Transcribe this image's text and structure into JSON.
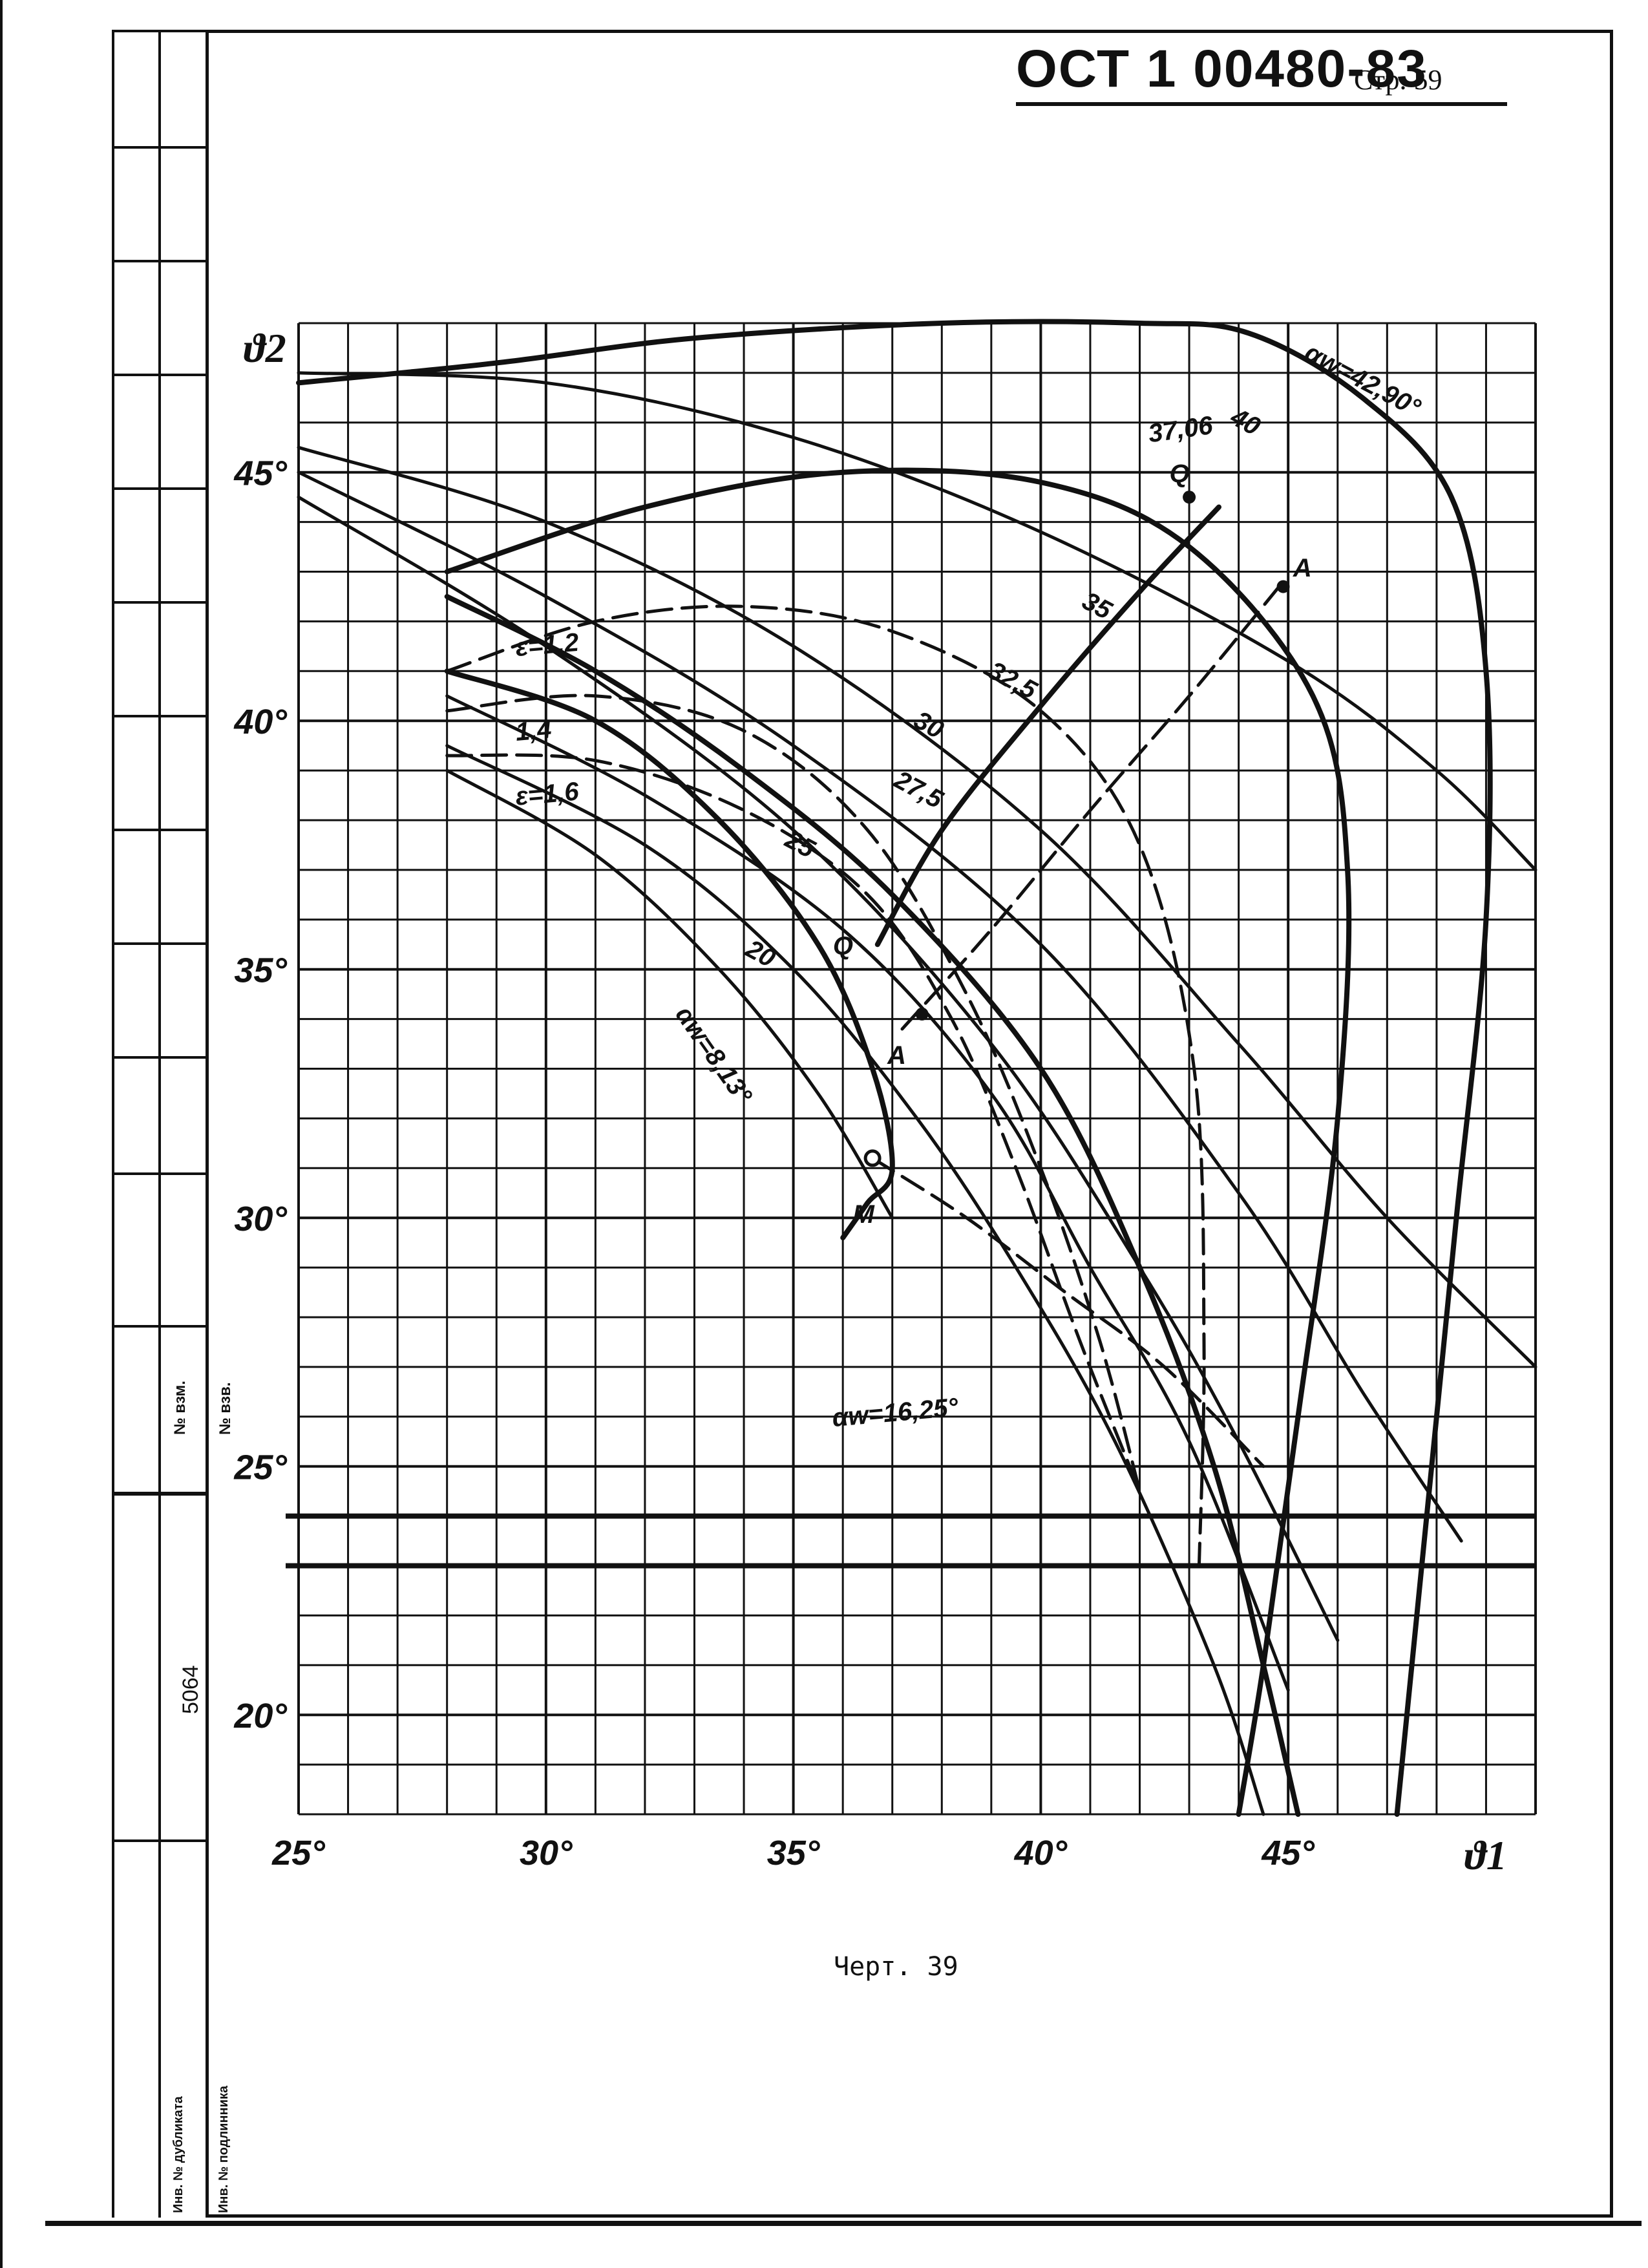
{
  "header": {
    "doc_number": "ОСТ 1 00480-83",
    "page": "Стр. 59"
  },
  "stamp": {
    "box1": "№ взм.",
    "box2": "№ взв.",
    "box3": "5064",
    "box4": "Инв. № дубликата",
    "box5": "Инв. № подлинника"
  },
  "caption": "Черт. 39",
  "chart_data": {
    "type": "line",
    "xlabel": "ϑ1",
    "ylabel": "ϑ2",
    "xlim": [
      25,
      50
    ],
    "ylim": [
      18,
      48
    ],
    "x_ticks": [
      "25°",
      "30°",
      "35°",
      "40°",
      "45°"
    ],
    "y_ticks": [
      "20°",
      "25°",
      "30°",
      "35°",
      "40°",
      "45°"
    ],
    "grid": true,
    "annotations": [
      "αw=42,90°",
      "40",
      "37,06",
      "35",
      "32,5",
      "30",
      "27,5",
      "25",
      "20",
      "αw=8,13°",
      "αw=16,25°",
      "ε=1,2",
      "1,4",
      "ε=1,6",
      "Q",
      "Q",
      "A",
      "A",
      "M"
    ],
    "series": [
      {
        "name": "αw=42,90°",
        "style": "solid",
        "points": [
          [
            25,
            46.8
          ],
          [
            29,
            47.2
          ],
          [
            33,
            47.7
          ],
          [
            38,
            48
          ],
          [
            42,
            48
          ],
          [
            44.2,
            47.8
          ],
          [
            46.5,
            46.5
          ],
          [
            48.3,
            44.5
          ],
          [
            49,
            41
          ],
          [
            49,
            36
          ],
          [
            48.4,
            30
          ],
          [
            47.8,
            24
          ],
          [
            47.2,
            18
          ]
        ]
      },
      {
        "name": "40",
        "style": "solid",
        "points": [
          [
            25,
            47
          ],
          [
            30,
            46.8
          ],
          [
            35,
            45.7
          ],
          [
            40,
            43.8
          ],
          [
            45,
            41.2
          ],
          [
            48,
            39
          ],
          [
            50,
            37
          ]
        ]
      },
      {
        "name": "37,06",
        "style": "solid",
        "points": [
          [
            28,
            43
          ],
          [
            32,
            44.3
          ],
          [
            36,
            45
          ],
          [
            40,
            44.8
          ],
          [
            43,
            43.5
          ],
          [
            45.5,
            40.5
          ],
          [
            46.2,
            37
          ],
          [
            46,
            32
          ],
          [
            45.2,
            26
          ],
          [
            44.5,
            21
          ],
          [
            44,
            18
          ]
        ]
      },
      {
        "name": "35",
        "style": "solid",
        "points": [
          [
            25,
            45.5
          ],
          [
            30,
            44
          ],
          [
            35,
            41.5
          ],
          [
            40,
            37.8
          ],
          [
            44,
            33.5
          ],
          [
            47,
            30
          ],
          [
            50,
            27
          ]
        ]
      },
      {
        "name": "32,5",
        "style": "solid",
        "points": [
          [
            25,
            45
          ],
          [
            30,
            42.5
          ],
          [
            35,
            39.5
          ],
          [
            40,
            35.5
          ],
          [
            44,
            30.5
          ],
          [
            46.5,
            26.5
          ],
          [
            48.5,
            23.5
          ]
        ]
      },
      {
        "name": "30",
        "style": "solid",
        "points": [
          [
            25,
            44.5
          ],
          [
            30,
            41.5
          ],
          [
            35,
            37.8
          ],
          [
            39,
            33.5
          ],
          [
            42,
            29
          ],
          [
            44,
            25.5
          ],
          [
            46,
            21.5
          ]
        ]
      },
      {
        "name": "27,5",
        "style": "solid",
        "points": [
          [
            28,
            40.5
          ],
          [
            32,
            38.5
          ],
          [
            36,
            35.8
          ],
          [
            39,
            32.5
          ],
          [
            41,
            29
          ],
          [
            43,
            25.5
          ],
          [
            45,
            20.5
          ]
        ]
      },
      {
        "name": "25",
        "style": "solid",
        "points": [
          [
            28,
            39.5
          ],
          [
            32,
            37.5
          ],
          [
            35,
            35
          ],
          [
            37.5,
            32
          ],
          [
            39.5,
            29
          ],
          [
            41.5,
            25.5
          ],
          [
            43.5,
            21
          ],
          [
            44.5,
            18
          ]
        ]
      },
      {
        "name": "20",
        "style": "solid",
        "points": [
          [
            28,
            39
          ],
          [
            31,
            37.3
          ],
          [
            33.5,
            35
          ],
          [
            35.5,
            32.5
          ],
          [
            37,
            30
          ]
        ]
      },
      {
        "name": "αw=8,13°",
        "style": "solid",
        "points": [
          [
            28,
            41
          ],
          [
            31,
            40
          ],
          [
            33.5,
            38
          ],
          [
            35.5,
            35.5
          ],
          [
            36.6,
            33
          ],
          [
            37,
            31
          ],
          [
            36.5,
            30.3
          ],
          [
            36,
            29.6
          ]
        ]
      },
      {
        "name": "αw=16,25°",
        "style": "solid",
        "points": [
          [
            28,
            42.5
          ],
          [
            31,
            41
          ],
          [
            34,
            39
          ],
          [
            37,
            36.5
          ],
          [
            40,
            33
          ],
          [
            42,
            29
          ],
          [
            43.5,
            25
          ],
          [
            44.5,
            21
          ],
          [
            45.2,
            18
          ]
        ]
      },
      {
        "name": "ε=1,2",
        "style": "dashed",
        "points": [
          [
            28,
            41
          ],
          [
            31,
            42
          ],
          [
            34,
            42.3
          ],
          [
            37,
            41.8
          ],
          [
            40,
            40.2
          ],
          [
            42,
            37.5
          ],
          [
            43.1,
            33
          ],
          [
            43.3,
            27.5
          ],
          [
            43.2,
            23
          ]
        ]
      },
      {
        "name": "1,4",
        "style": "dashed",
        "points": [
          [
            28,
            40.2
          ],
          [
            31,
            40.5
          ],
          [
            34,
            39.8
          ],
          [
            36.5,
            37.8
          ],
          [
            38.5,
            34.5
          ],
          [
            40,
            31
          ],
          [
            41.2,
            27.5
          ],
          [
            42,
            24.5
          ]
        ]
      },
      {
        "name": "ε=1,6",
        "style": "dashed",
        "points": [
          [
            28,
            39.3
          ],
          [
            31,
            39.2
          ],
          [
            34,
            38.2
          ],
          [
            36.5,
            36.5
          ],
          [
            38.2,
            34
          ],
          [
            39.5,
            31
          ],
          [
            40.8,
            27.5
          ],
          [
            42,
            24.5
          ]
        ]
      },
      {
        "name": "Q–Q",
        "style": "solid",
        "points": [
          [
            36.7,
            35.5
          ],
          [
            38,
            37.8
          ],
          [
            40,
            40.3
          ],
          [
            42,
            42.6
          ],
          [
            43.6,
            44.3
          ]
        ]
      },
      {
        "name": "A–A",
        "style": "dashed",
        "points": [
          [
            37.2,
            33.8
          ],
          [
            39,
            35.8
          ],
          [
            41,
            38.2
          ],
          [
            43,
            40.5
          ],
          [
            44.9,
            42.8
          ]
        ]
      },
      {
        "name": "M",
        "style": "dashed",
        "points": [
          [
            36.6,
            31.2
          ],
          [
            38.5,
            30
          ],
          [
            40.5,
            28.5
          ],
          [
            42.5,
            27
          ],
          [
            44.5,
            25
          ]
        ]
      }
    ]
  }
}
